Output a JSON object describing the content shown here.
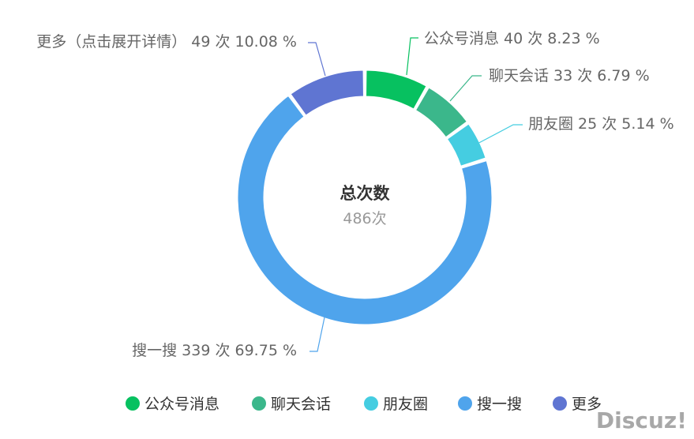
{
  "chart_data": {
    "type": "pie",
    "variant": "donut",
    "center_title": "总次数",
    "center_subtitle": "486次",
    "total": 486,
    "legend_position": "bottom",
    "slices": [
      {
        "name": "公众号消息",
        "label": "公众号消息 40 次 8.23 %",
        "value": 40,
        "percent": 8.23,
        "color": "#07c160"
      },
      {
        "name": "聊天会话",
        "label": "聊天会话 33 次 6.79 %",
        "value": 33,
        "percent": 6.79,
        "color": "#3bb78b"
      },
      {
        "name": "朋友圈",
        "label": "朋友圈 25 次 5.14 %",
        "value": 25,
        "percent": 5.14,
        "color": "#45cde1"
      },
      {
        "name": "搜一搜",
        "label": "搜一搜 339 次 69.75 %",
        "value": 339,
        "percent": 69.75,
        "color": "#4fa4ec"
      },
      {
        "name": "更多",
        "label": "更多（点击展开详情） 49 次 10.08 %",
        "value": 49,
        "percent": 10.08,
        "color": "#5f75d2"
      }
    ],
    "legend": [
      "公众号消息",
      "聊天会话",
      "朋友圈",
      "搜一搜",
      "更多"
    ]
  },
  "watermark": "Discuz!"
}
